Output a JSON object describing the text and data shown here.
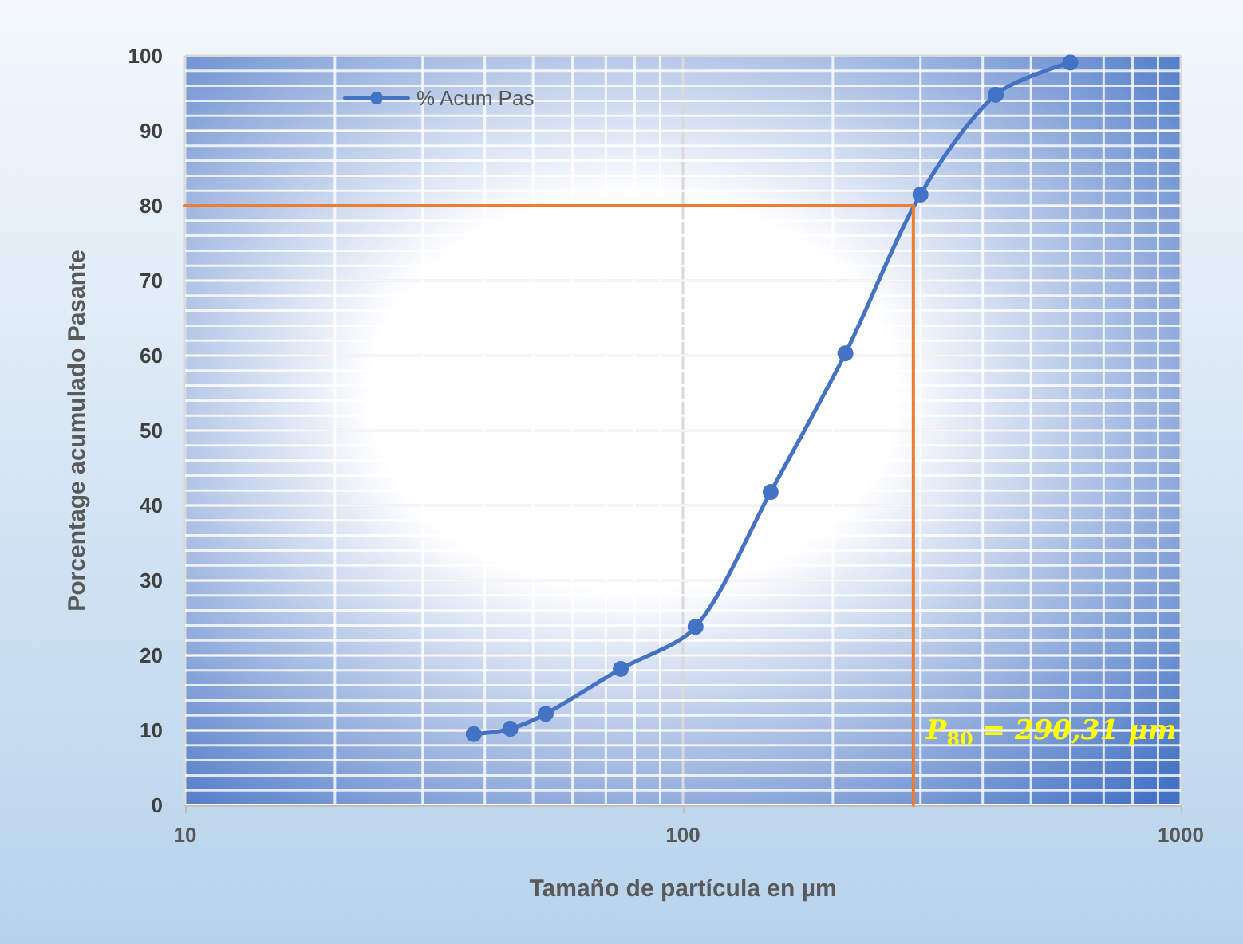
{
  "chart_data": {
    "type": "line",
    "xlabel": "Tamaño de partícula en µm",
    "ylabel": "Porcentage acumulado Pasante",
    "log": "x",
    "xlim": [
      10,
      1000
    ],
    "xticks": [
      10,
      100,
      1000
    ],
    "ylim": [
      0,
      100
    ],
    "yticks": [
      0,
      10,
      20,
      30,
      40,
      50,
      60,
      70,
      80,
      90,
      100
    ],
    "grid": true,
    "legend": "top left",
    "marker": "circle",
    "line_style": "solid",
    "series": [
      {
        "name": "% Acum Pas",
        "color": "#4472c4",
        "x": [
          38,
          45,
          53,
          75,
          106,
          150,
          212,
          300,
          425,
          600
        ],
        "values": [
          9.5,
          10.2,
          12.2,
          18.2,
          23.8,
          41.8,
          60.3,
          81.5,
          94.8,
          99.1
        ]
      },
      {
        "type": "line",
        "color": "#ed7d31",
        "marker": "none",
        "x": [
          10,
          290.31,
          290.31
        ],
        "values": [
          80,
          80,
          0
        ]
      }
    ],
    "annotations": [
      {
        "text": "P$_{80}$ = 290,31 μm",
        "x": 290.31,
        "y": 8
      }
    ]
  }
}
